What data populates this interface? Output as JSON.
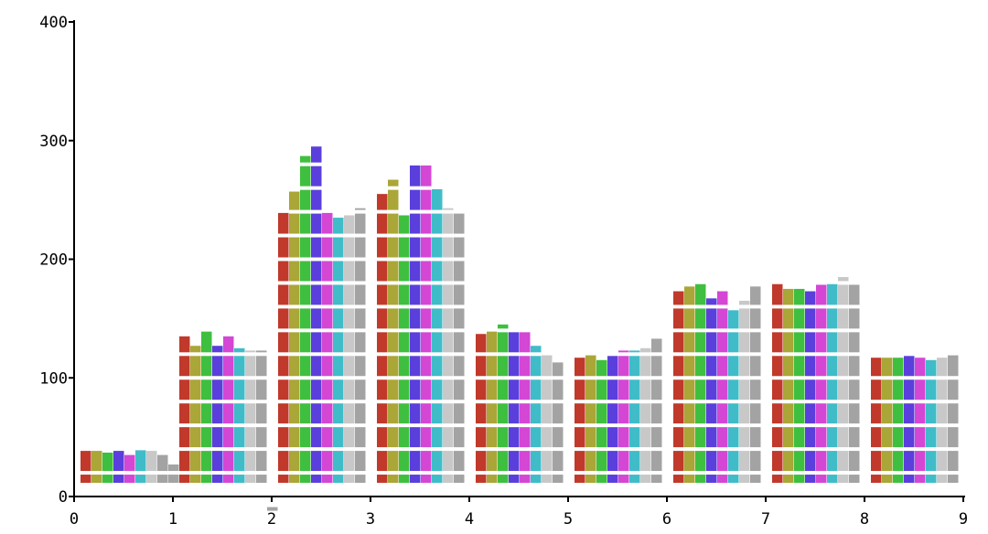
{
  "chart_data": {
    "type": "bar",
    "title": "",
    "xlabel": "",
    "ylabel": "",
    "xlim": [
      0,
      9
    ],
    "ylim": [
      0,
      400
    ],
    "x_ticks": [
      "0",
      "1",
      "2",
      "3",
      "4",
      "5",
      "6",
      "7",
      "8",
      "9"
    ],
    "y_ticks": [
      "0",
      "100",
      "200",
      "300",
      "400"
    ],
    "grid": false,
    "legend": "none",
    "segment_size": 20,
    "groups": [
      {
        "x": 0,
        "values": [
          41,
          41,
          37,
          41,
          35,
          39,
          41,
          35,
          27
        ]
      },
      {
        "x": 1,
        "values": [
          135,
          127,
          139,
          127,
          135,
          125,
          123,
          123,
          -30
        ]
      },
      {
        "x": 2,
        "values": [
          239,
          257,
          287,
          295,
          239,
          235,
          237,
          243
        ]
      },
      {
        "x": 3,
        "values": [
          255,
          267,
          237,
          279,
          279,
          259,
          243,
          241
        ]
      },
      {
        "x": 4,
        "values": [
          137,
          139,
          145,
          141,
          141,
          127,
          119,
          113
        ]
      },
      {
        "x": 5,
        "values": [
          117,
          119,
          115,
          121,
          123,
          123,
          125,
          133
        ]
      },
      {
        "x": 6,
        "values": [
          173,
          177,
          179,
          167,
          173,
          157,
          165,
          177
        ]
      },
      {
        "x": 7,
        "values": [
          179,
          175,
          175,
          173,
          181,
          179,
          185,
          181
        ]
      },
      {
        "x": 8,
        "values": [
          117,
          117,
          117,
          121,
          117,
          115,
          117,
          119
        ]
      }
    ],
    "colors": [
      "#c0392b",
      "#aaa637",
      "#3fbf3f",
      "#5a3fdc",
      "#d447d4",
      "#3fbcc8",
      "#c8c8c8",
      "#a3a3a3",
      "#a3a3a3"
    ]
  }
}
